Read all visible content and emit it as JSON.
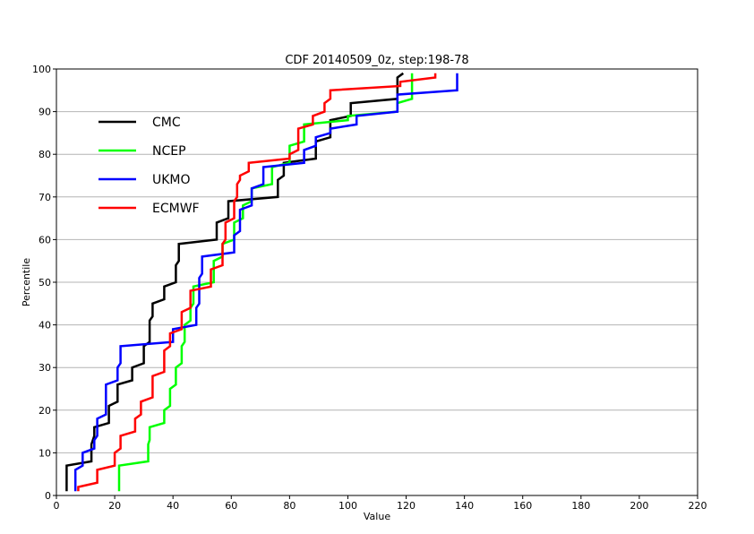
{
  "chart_data": {
    "type": "line",
    "title": "CDF 20140509_0z, step:198-78",
    "xlabel": "Value",
    "ylabel": "Percentile",
    "xlim": [
      0,
      220
    ],
    "ylim": [
      0,
      100
    ],
    "xticks": [
      0,
      20,
      40,
      60,
      80,
      100,
      120,
      140,
      160,
      180,
      200,
      220
    ],
    "yticks": [
      0,
      10,
      20,
      30,
      40,
      50,
      60,
      70,
      80,
      90,
      100
    ],
    "grid": "horizontal",
    "legend_position": "top-left",
    "series": [
      {
        "name": "CMC",
        "color": "#000000",
        "points": [
          [
            3.5,
            1
          ],
          [
            3.5,
            7
          ],
          [
            12,
            8
          ],
          [
            12,
            12
          ],
          [
            13,
            14
          ],
          [
            13,
            16
          ],
          [
            18,
            17
          ],
          [
            18,
            21
          ],
          [
            21,
            22
          ],
          [
            21,
            26
          ],
          [
            26,
            27
          ],
          [
            26,
            30
          ],
          [
            30,
            31
          ],
          [
            30,
            35
          ],
          [
            32,
            36
          ],
          [
            32,
            41
          ],
          [
            33,
            42
          ],
          [
            33,
            45
          ],
          [
            37,
            46
          ],
          [
            37,
            49
          ],
          [
            41,
            50
          ],
          [
            41,
            54
          ],
          [
            42,
            55
          ],
          [
            42,
            59
          ],
          [
            55,
            60
          ],
          [
            55,
            64
          ],
          [
            59,
            65
          ],
          [
            59,
            69
          ],
          [
            76,
            70
          ],
          [
            76,
            74
          ],
          [
            78,
            75
          ],
          [
            78,
            78
          ],
          [
            89,
            79
          ],
          [
            89,
            83
          ],
          [
            94,
            84
          ],
          [
            94,
            88
          ],
          [
            101,
            89
          ],
          [
            101,
            92
          ],
          [
            117,
            93
          ],
          [
            117,
            98
          ],
          [
            119,
            99
          ]
        ]
      },
      {
        "name": "NCEP",
        "color": "#00ff00",
        "points": [
          [
            21.5,
            1
          ],
          [
            21.5,
            7
          ],
          [
            31.5,
            8
          ],
          [
            31.5,
            12
          ],
          [
            32,
            13
          ],
          [
            32,
            16
          ],
          [
            37,
            17
          ],
          [
            37,
            20
          ],
          [
            39,
            21
          ],
          [
            39,
            25
          ],
          [
            41,
            26
          ],
          [
            41,
            30
          ],
          [
            43,
            31
          ],
          [
            43,
            35
          ],
          [
            44,
            36
          ],
          [
            44,
            40
          ],
          [
            46,
            41
          ],
          [
            46,
            44
          ],
          [
            47,
            45
          ],
          [
            47,
            49
          ],
          [
            54,
            50
          ],
          [
            54,
            55
          ],
          [
            57,
            56
          ],
          [
            57,
            59
          ],
          [
            61,
            60
          ],
          [
            61,
            64
          ],
          [
            64,
            65
          ],
          [
            64,
            68
          ],
          [
            67,
            69
          ],
          [
            67,
            72
          ],
          [
            74,
            73
          ],
          [
            74,
            77
          ],
          [
            80,
            78
          ],
          [
            80,
            82
          ],
          [
            85,
            83
          ],
          [
            85,
            87
          ],
          [
            100,
            88
          ],
          [
            100,
            89
          ],
          [
            117,
            90
          ],
          [
            117,
            92
          ],
          [
            122,
            93
          ],
          [
            122,
            99
          ]
        ]
      },
      {
        "name": "UKMO",
        "color": "#0000ff",
        "points": [
          [
            6.5,
            1
          ],
          [
            6.5,
            6
          ],
          [
            9,
            7
          ],
          [
            9,
            10
          ],
          [
            13,
            11
          ],
          [
            13,
            13
          ],
          [
            14,
            14
          ],
          [
            14,
            18
          ],
          [
            17,
            19
          ],
          [
            17,
            26
          ],
          [
            21,
            27
          ],
          [
            21,
            30
          ],
          [
            22,
            31
          ],
          [
            22,
            35
          ],
          [
            40,
            36
          ],
          [
            40,
            39
          ],
          [
            48,
            40
          ],
          [
            48,
            44
          ],
          [
            49,
            45
          ],
          [
            49,
            51
          ],
          [
            50,
            52
          ],
          [
            50,
            56
          ],
          [
            61,
            57
          ],
          [
            61,
            61
          ],
          [
            63,
            62
          ],
          [
            63,
            67
          ],
          [
            67,
            68
          ],
          [
            67,
            72
          ],
          [
            71,
            73
          ],
          [
            71,
            77
          ],
          [
            85,
            78
          ],
          [
            85,
            81
          ],
          [
            89,
            82
          ],
          [
            89,
            84
          ],
          [
            94,
            85
          ],
          [
            94,
            86
          ],
          [
            103,
            87
          ],
          [
            103,
            89
          ],
          [
            117,
            90
          ],
          [
            117,
            94
          ],
          [
            137.5,
            95
          ],
          [
            137.5,
            99
          ]
        ]
      },
      {
        "name": "ECMWF",
        "color": "#ff0000",
        "points": [
          [
            7.5,
            1
          ],
          [
            7.5,
            2
          ],
          [
            14,
            3
          ],
          [
            14,
            6
          ],
          [
            20,
            7
          ],
          [
            20,
            10
          ],
          [
            22,
            11
          ],
          [
            22,
            14
          ],
          [
            27,
            15
          ],
          [
            27,
            18
          ],
          [
            29,
            19
          ],
          [
            29,
            22
          ],
          [
            33,
            23
          ],
          [
            33,
            28
          ],
          [
            37,
            29
          ],
          [
            37,
            34
          ],
          [
            39,
            35
          ],
          [
            39,
            38
          ],
          [
            43,
            39
          ],
          [
            43,
            43
          ],
          [
            46,
            44
          ],
          [
            46,
            48
          ],
          [
            53,
            49
          ],
          [
            53,
            53
          ],
          [
            57,
            54
          ],
          [
            57,
            59
          ],
          [
            58,
            60
          ],
          [
            58,
            64
          ],
          [
            61,
            65
          ],
          [
            61,
            69
          ],
          [
            62,
            70
          ],
          [
            62,
            73
          ],
          [
            63,
            74
          ],
          [
            63,
            75
          ],
          [
            66,
            76
          ],
          [
            66,
            78
          ],
          [
            80,
            79
          ],
          [
            80,
            80
          ],
          [
            83,
            81
          ],
          [
            83,
            86
          ],
          [
            88,
            87
          ],
          [
            88,
            89
          ],
          [
            92,
            90
          ],
          [
            92,
            92
          ],
          [
            94,
            93
          ],
          [
            94,
            95
          ],
          [
            118,
            96
          ],
          [
            118,
            97
          ],
          [
            130,
            98
          ],
          [
            130,
            99
          ]
        ]
      }
    ]
  }
}
